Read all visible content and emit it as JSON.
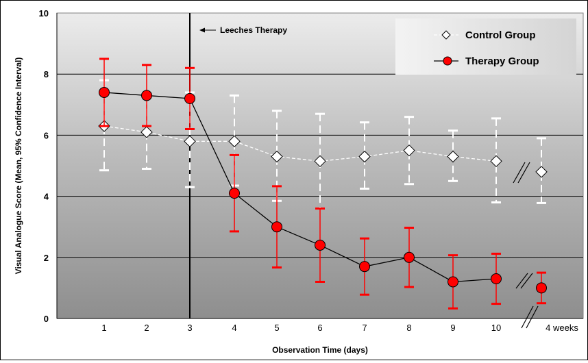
{
  "chart_data": {
    "type": "line",
    "xlabel": "Observation Time (days)",
    "ylabel": "Visual Analogue Score (Mean, 95% Confidence Interval)",
    "ylim": [
      0,
      10
    ],
    "yticks": [
      "0",
      "2",
      "4",
      "6",
      "8",
      "10"
    ],
    "categories": [
      "1",
      "2",
      "3",
      "4",
      "5",
      "6",
      "7",
      "8",
      "9",
      "10",
      "4 weeks"
    ],
    "grid": true,
    "legend_position": "top-right",
    "annotation": {
      "label": "Leeches Therapy",
      "at_category": "3"
    },
    "series": [
      {
        "name": "Control Group",
        "marker": "diamond",
        "line_style": "dashed",
        "color": "#ffffff",
        "values": [
          6.3,
          6.1,
          5.8,
          5.8,
          5.3,
          5.15,
          5.3,
          5.5,
          5.3,
          5.15,
          4.8
        ],
        "ci_low": [
          4.85,
          4.9,
          4.3,
          4.35,
          3.85,
          3.6,
          4.25,
          4.4,
          4.5,
          3.8,
          3.78
        ],
        "ci_high": [
          7.8,
          7.25,
          7.4,
          7.3,
          6.8,
          6.7,
          6.42,
          6.6,
          6.15,
          6.55,
          5.9
        ]
      },
      {
        "name": "Therapy Group",
        "marker": "circle",
        "line_style": "solid",
        "color": "#ff0000",
        "values": [
          7.4,
          7.3,
          7.2,
          4.1,
          3.0,
          2.4,
          1.7,
          2.0,
          1.2,
          1.3,
          1.0
        ],
        "ci_low": [
          6.3,
          6.3,
          6.2,
          2.85,
          1.67,
          1.2,
          0.78,
          1.03,
          0.33,
          0.48,
          0.5
        ],
        "ci_high": [
          8.5,
          8.3,
          8.2,
          5.35,
          4.33,
          3.6,
          2.62,
          2.97,
          2.07,
          2.12,
          1.5
        ]
      }
    ]
  }
}
